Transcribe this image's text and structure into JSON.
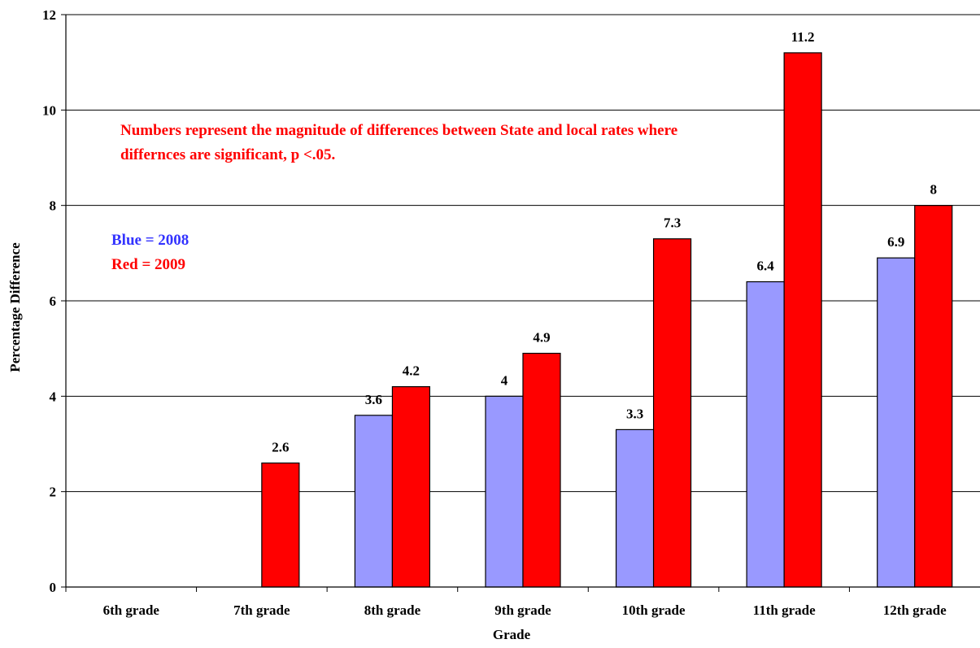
{
  "chart_data": {
    "type": "bar",
    "title": "",
    "xlabel": "Grade",
    "ylabel": "Percentage Difference",
    "ylim": [
      0,
      12
    ],
    "yticks": [
      0,
      2,
      4,
      6,
      8,
      10,
      12
    ],
    "grid": true,
    "categories": [
      "6th grade",
      "7th grade",
      "8th grade",
      "9th grade",
      "10th grade",
      "11th grade",
      "12th grade"
    ],
    "series": [
      {
        "name": "2008",
        "color": "#9999ff",
        "values": [
          null,
          null,
          3.6,
          4,
          3.3,
          6.4,
          6.9
        ]
      },
      {
        "name": "2009",
        "color": "#ff0000",
        "values": [
          null,
          2.6,
          4.2,
          4.9,
          7.3,
          11.2,
          8
        ]
      }
    ],
    "data_labels": {
      "2008": [
        null,
        null,
        "3.6",
        "4",
        "3.3",
        "6.4",
        "6.9"
      ],
      "2009": [
        null,
        "2.6",
        "4.2",
        "4.9",
        "7.3",
        "11.2",
        "8"
      ]
    },
    "annotations": {
      "note": "Numbers represent the magnitude of differences between State and local rates where differnces are significant, p <.05.",
      "legend_blue": "Blue = 2008",
      "legend_red": "Red = 2009"
    }
  }
}
